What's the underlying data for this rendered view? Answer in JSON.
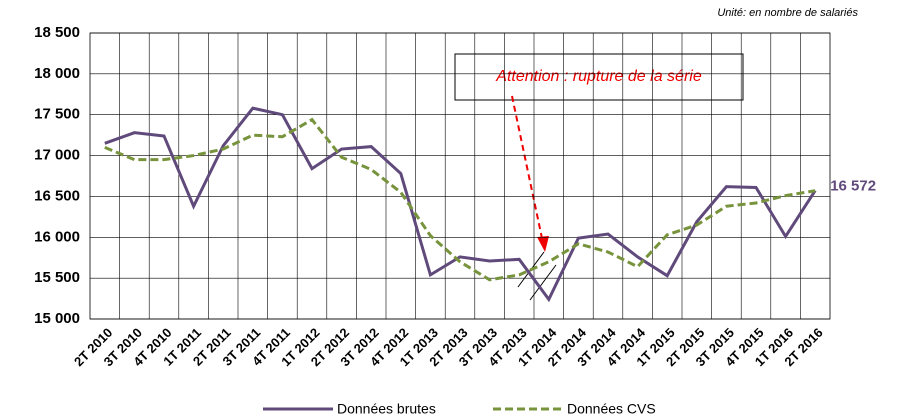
{
  "chart_data": {
    "type": "line",
    "unit_note": "Unité: en nombre de salariés",
    "annotation": "Attention : rupture de la série",
    "categories": [
      "2T 2010",
      "3T 2010",
      "4T 2010",
      "1T 2011",
      "2T 2011",
      "3T 2011",
      "4T 2011",
      "1T 2012",
      "2T 2012",
      "3T 2012",
      "4T 2012",
      "1T 2013",
      "2T 2013",
      "3T 2013",
      "4T 2013",
      "1T 2014",
      "2T 2014",
      "3T 2014",
      "4T 2014",
      "1T 2015",
      "2T 2015",
      "3T 2015",
      "4T 2015",
      "1T 2016",
      "2T 2016"
    ],
    "series": [
      {
        "name": "Données brutes",
        "color": "#604a7b",
        "dash": false,
        "values": [
          17150,
          17280,
          17240,
          16380,
          17120,
          17580,
          17500,
          16840,
          17080,
          17110,
          16780,
          15540,
          15760,
          15710,
          15730,
          15240,
          15990,
          16040,
          15760,
          15530,
          16190,
          16620,
          16610,
          16010,
          16572
        ],
        "value_labels": [
          null,
          null,
          null,
          null,
          null,
          null,
          null,
          null,
          null,
          null,
          null,
          null,
          null,
          null,
          null,
          null,
          null,
          null,
          null,
          null,
          null,
          null,
          null,
          null,
          "16 572"
        ]
      },
      {
        "name": "Données CVS",
        "color": "#77933c",
        "dash": true,
        "values": [
          17100,
          16950,
          16950,
          17000,
          17080,
          17250,
          17230,
          17440,
          16980,
          16830,
          16550,
          16020,
          15700,
          15480,
          15540,
          15700,
          15920,
          15820,
          15640,
          16030,
          16150,
          16380,
          16420,
          16510,
          16570
        ]
      }
    ],
    "ylim": [
      15000,
      18500
    ],
    "yticks": [
      {
        "value": 15000,
        "label": "15 000"
      },
      {
        "value": 15500,
        "label": "15 500"
      },
      {
        "value": 16000,
        "label": "16 000"
      },
      {
        "value": 16500,
        "label": "16 500"
      },
      {
        "value": 17000,
        "label": "17 000"
      },
      {
        "value": 17500,
        "label": "17 500"
      },
      {
        "value": 18000,
        "label": "18 000"
      },
      {
        "value": 18500,
        "label": "18 500"
      }
    ],
    "grid": true,
    "legend": "bottom"
  }
}
